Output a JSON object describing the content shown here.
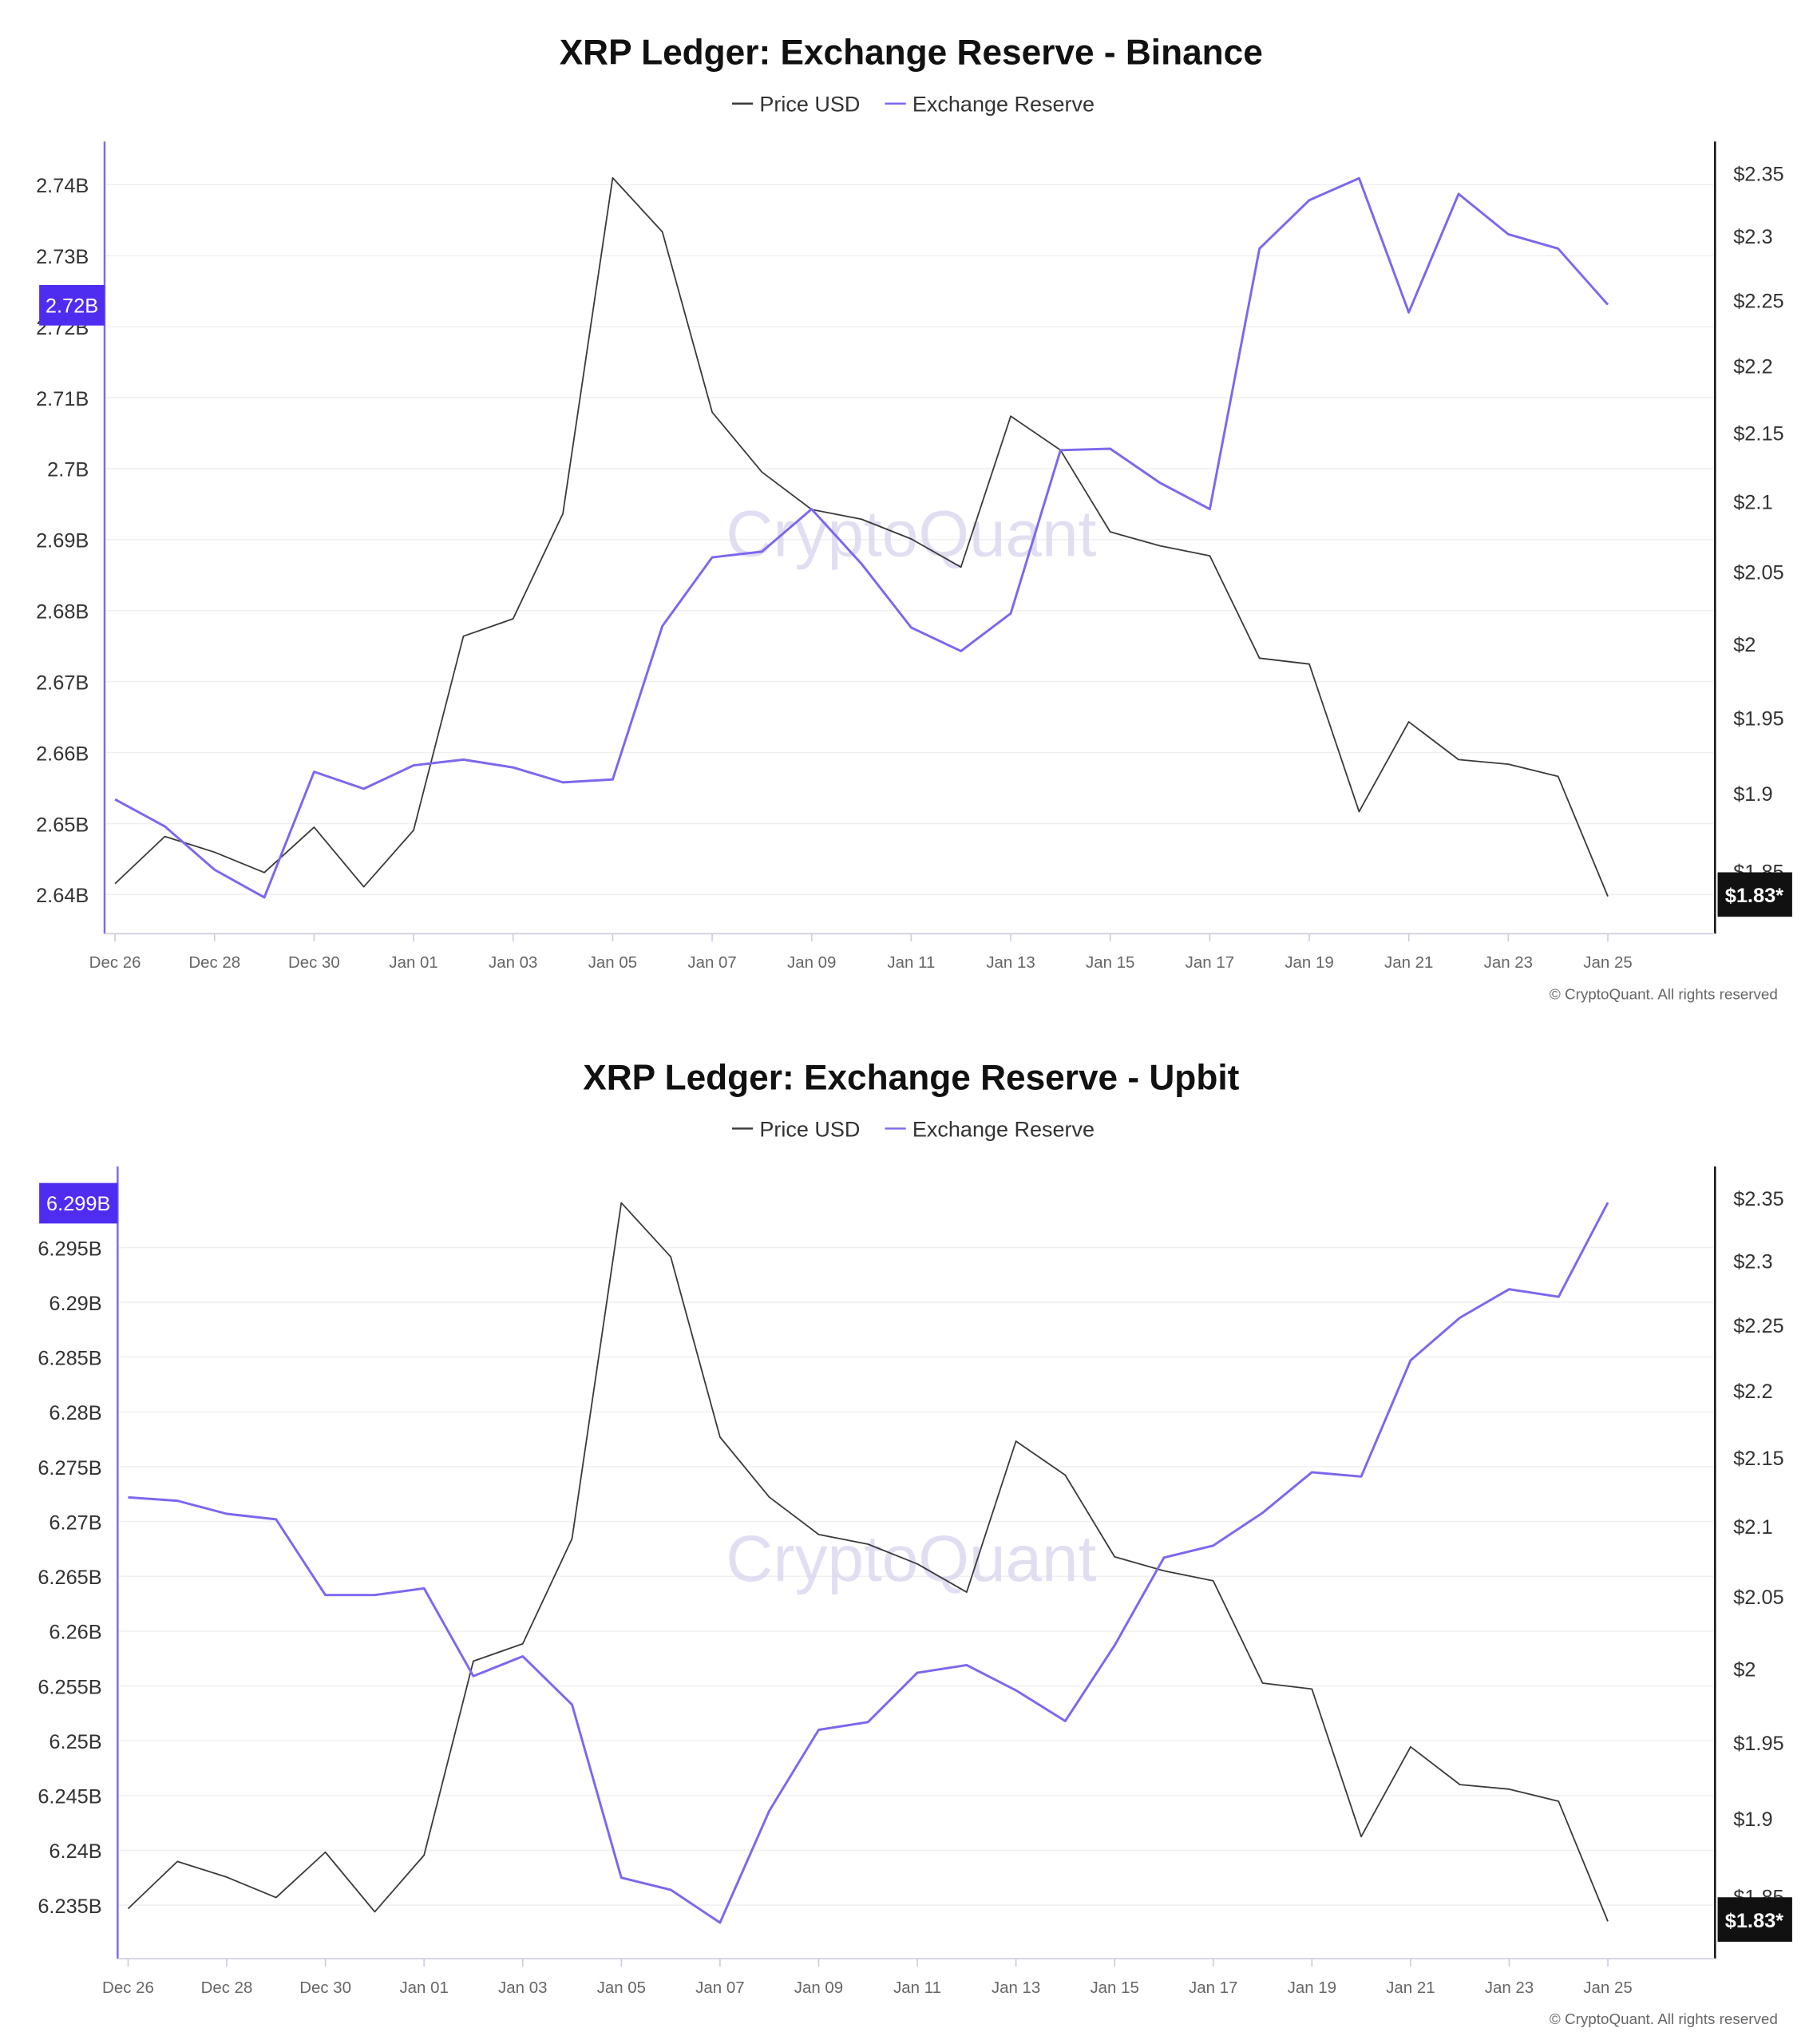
{
  "chart_data": [
    {
      "type": "line",
      "title": "XRP Ledger: Exchange Reserve - Binance",
      "legend": [
        "Price USD",
        "Exchange Reserve"
      ],
      "legend_position": "top",
      "watermark": "CryptoQuant",
      "copyright": "© CryptoQuant. All rights reserved",
      "grid": true,
      "x": [
        "Dec 26",
        "Dec 27",
        "Dec 28",
        "Dec 29",
        "Dec 30",
        "Dec 31",
        "Jan 01",
        "Jan 02",
        "Jan 03",
        "Jan 04",
        "Jan 05",
        "Jan 06",
        "Jan 07",
        "Jan 08",
        "Jan 09",
        "Jan 10",
        "Jan 11",
        "Jan 12",
        "Jan 13",
        "Jan 14",
        "Jan 15",
        "Jan 16",
        "Jan 17",
        "Jan 18",
        "Jan 19",
        "Jan 20",
        "Jan 21",
        "Jan 22",
        "Jan 23",
        "Jan 24",
        "Jan 25"
      ],
      "x_tick_labels": [
        "Dec 26",
        "Dec 28",
        "Dec 30",
        "Jan 01",
        "Jan 03",
        "Jan 05",
        "Jan 07",
        "Jan 09",
        "Jan 11",
        "Jan 13",
        "Jan 15",
        "Jan 17",
        "Jan 19",
        "Jan 21",
        "Jan 23",
        "Jan 25"
      ],
      "y_left": {
        "ticks": [
          "2.64B",
          "2.65B",
          "2.66B",
          "2.67B",
          "2.68B",
          "2.69B",
          "2.7B",
          "2.71B",
          "2.72B",
          "2.73B",
          "2.74B"
        ],
        "tick_values": [
          2.64,
          2.65,
          2.66,
          2.67,
          2.68,
          2.69,
          2.7,
          2.71,
          2.72,
          2.73,
          2.74
        ],
        "unit": "B",
        "current_label": "2.72B"
      },
      "y_right": {
        "scale": "log",
        "ticks": [
          "$1.85",
          "$1.9",
          "$1.95",
          "$2",
          "$2.05",
          "$2.1",
          "$2.15",
          "$2.2",
          "$2.25",
          "$2.3",
          "$2.35"
        ],
        "tick_values": [
          1.85,
          1.9,
          1.95,
          2,
          2.05,
          2.1,
          2.15,
          2.2,
          2.25,
          2.3,
          2.35
        ],
        "current_label": "$1.83*"
      },
      "series": [
        {
          "name": "Price USD",
          "axis": "right",
          "color": "#3a3a3a",
          "values": [
            1.842,
            1.872,
            1.862,
            1.849,
            1.878,
            1.84,
            1.876,
            2.005,
            2.017,
            2.091,
            2.346,
            2.303,
            2.165,
            2.121,
            2.094,
            2.087,
            2.073,
            2.053,
            2.162,
            2.137,
            2.078,
            2.068,
            2.061,
            1.99,
            1.986,
            1.888,
            1.947,
            1.922,
            1.919,
            1.911,
            1.834
          ]
        },
        {
          "name": "Exchange Reserve",
          "axis": "left",
          "color": "#7b68ee",
          "values": [
            2.6534,
            2.6496,
            2.6435,
            2.6396,
            2.6573,
            2.6549,
            2.6582,
            2.659,
            2.6579,
            2.6558,
            2.6562,
            2.6778,
            2.6875,
            2.6883,
            2.6943,
            2.6866,
            2.6776,
            2.6743,
            2.6796,
            2.7026,
            2.7028,
            2.698,
            2.6943,
            2.731,
            2.7378,
            2.7409,
            2.722,
            2.7387,
            2.733,
            2.731,
            2.7231
          ]
        }
      ]
    },
    {
      "type": "line",
      "title": "XRP Ledger: Exchange Reserve - Upbit",
      "legend": [
        "Price USD",
        "Exchange Reserve"
      ],
      "legend_position": "top",
      "watermark": "CryptoQuant",
      "copyright": "© CryptoQuant. All rights reserved",
      "grid": true,
      "x": [
        "Dec 26",
        "Dec 27",
        "Dec 28",
        "Dec 29",
        "Dec 30",
        "Dec 31",
        "Jan 01",
        "Jan 02",
        "Jan 03",
        "Jan 04",
        "Jan 05",
        "Jan 06",
        "Jan 07",
        "Jan 08",
        "Jan 09",
        "Jan 10",
        "Jan 11",
        "Jan 12",
        "Jan 13",
        "Jan 14",
        "Jan 15",
        "Jan 16",
        "Jan 17",
        "Jan 18",
        "Jan 19",
        "Jan 20",
        "Jan 21",
        "Jan 22",
        "Jan 23",
        "Jan 24",
        "Jan 25"
      ],
      "x_tick_labels": [
        "Dec 26",
        "Dec 28",
        "Dec 30",
        "Jan 01",
        "Jan 03",
        "Jan 05",
        "Jan 07",
        "Jan 09",
        "Jan 11",
        "Jan 13",
        "Jan 15",
        "Jan 17",
        "Jan 19",
        "Jan 21",
        "Jan 23",
        "Jan 25"
      ],
      "y_left": {
        "ticks": [
          "6.235B",
          "6.24B",
          "6.245B",
          "6.25B",
          "6.255B",
          "6.26B",
          "6.265B",
          "6.27B",
          "6.275B",
          "6.28B",
          "6.285B",
          "6.29B",
          "6.295B"
        ],
        "tick_values": [
          6.235,
          6.24,
          6.245,
          6.25,
          6.255,
          6.26,
          6.265,
          6.27,
          6.275,
          6.28,
          6.285,
          6.29,
          6.295
        ],
        "unit": "B",
        "current_label": "6.299B"
      },
      "y_right": {
        "scale": "log",
        "ticks": [
          "$1.85",
          "$1.9",
          "$1.95",
          "$2",
          "$2.05",
          "$2.1",
          "$2.15",
          "$2.2",
          "$2.25",
          "$2.3",
          "$2.35"
        ],
        "tick_values": [
          1.85,
          1.9,
          1.95,
          2,
          2.05,
          2.1,
          2.15,
          2.2,
          2.25,
          2.3,
          2.35
        ],
        "current_label": "$1.83*"
      },
      "series": [
        {
          "name": "Price USD",
          "axis": "right",
          "color": "#3a3a3a",
          "values": [
            1.842,
            1.872,
            1.862,
            1.849,
            1.878,
            1.84,
            1.876,
            2.005,
            2.017,
            2.091,
            2.346,
            2.303,
            2.165,
            2.121,
            2.094,
            2.087,
            2.073,
            2.053,
            2.162,
            2.137,
            2.078,
            2.068,
            2.061,
            1.99,
            1.986,
            1.888,
            1.947,
            1.922,
            1.919,
            1.911,
            1.834
          ]
        },
        {
          "name": "Exchange Reserve",
          "axis": "left",
          "color": "#7b68ee",
          "values": [
            6.2722,
            6.2719,
            6.2707,
            6.2702,
            6.2633,
            6.2633,
            6.2639,
            6.2559,
            6.2577,
            6.2533,
            6.2375,
            6.2364,
            6.2334,
            6.2436,
            6.251,
            6.2517,
            6.2562,
            6.2569,
            6.2546,
            6.2518,
            6.2587,
            6.2667,
            6.2678,
            6.2708,
            6.2745,
            6.2741,
            6.2847,
            6.2886,
            6.2912,
            6.2905,
            6.2991
          ]
        }
      ]
    }
  ],
  "colors": {
    "reserve": "#7b68ee",
    "reserve_label_bg": "#4f2df0",
    "price": "#3a3a3a",
    "price_label_bg": "#111111"
  }
}
